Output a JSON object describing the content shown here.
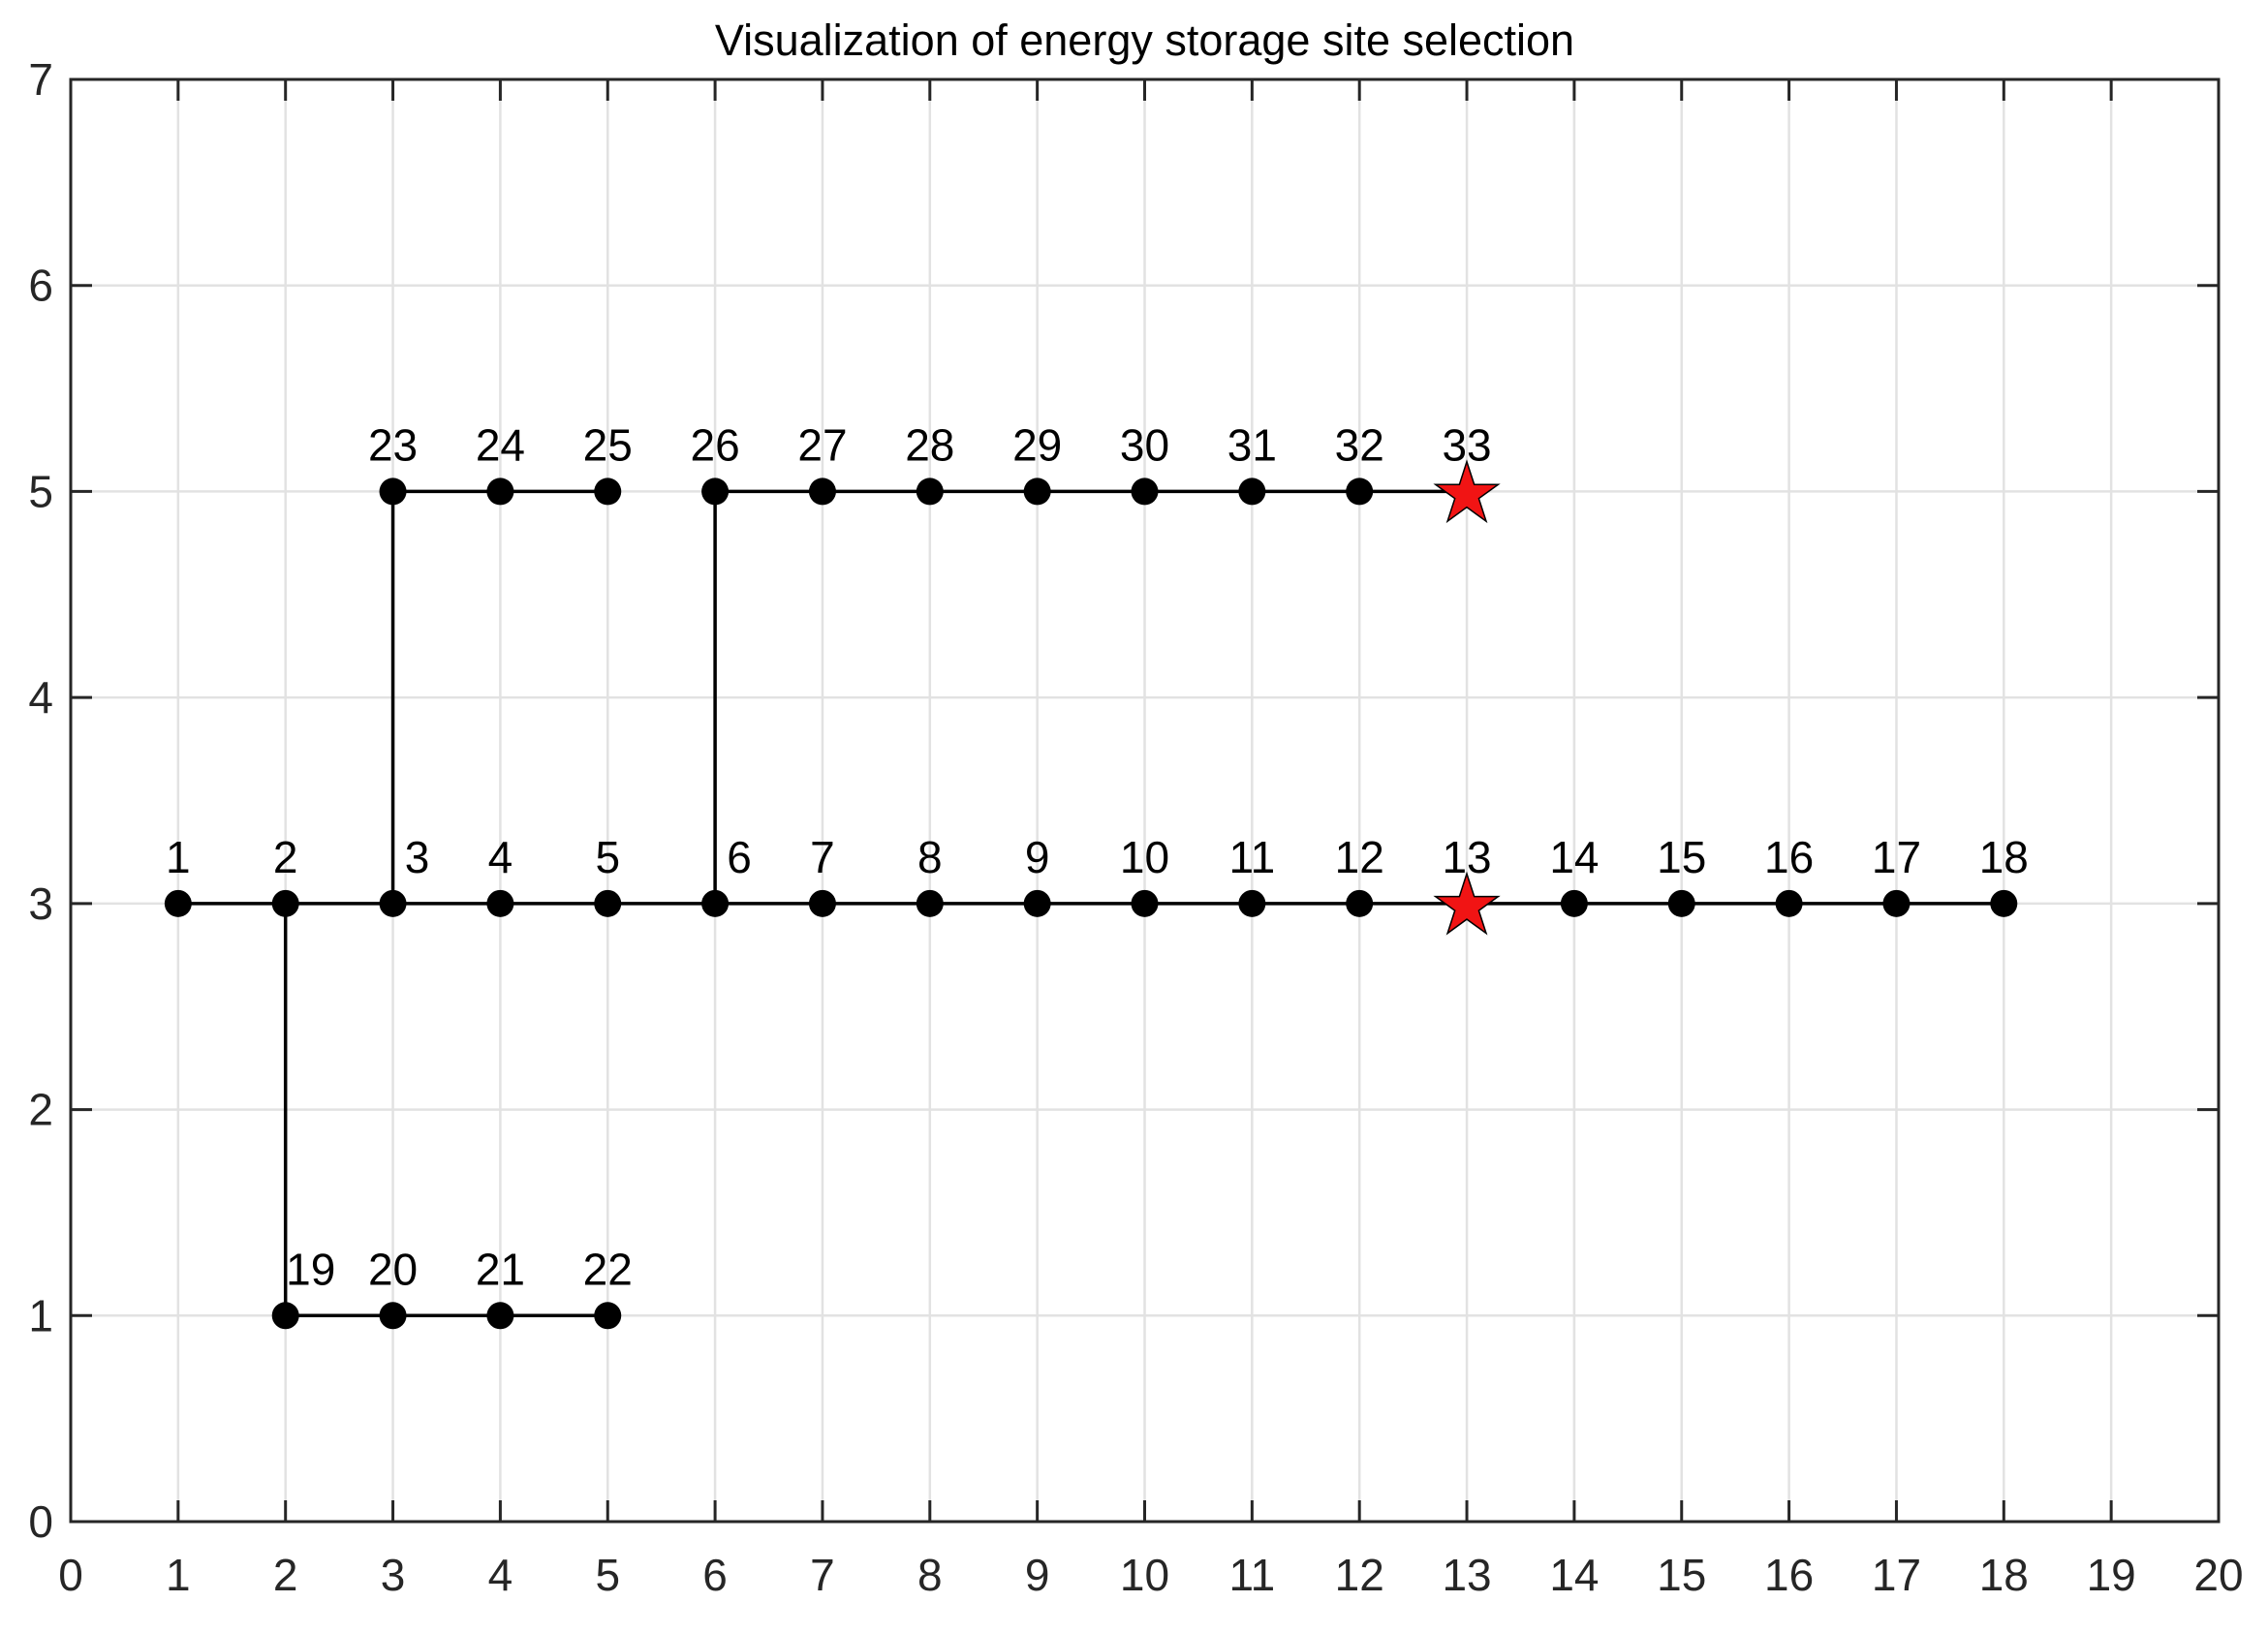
{
  "window": {
    "background": "#ffffff"
  },
  "chart_data": {
    "type": "scatter",
    "title": "Visualization of energy storage site selection",
    "xlabel": "",
    "ylabel": "",
    "xlim": [
      0,
      20
    ],
    "ylim": [
      0,
      7
    ],
    "xticks": [
      0,
      1,
      2,
      3,
      4,
      5,
      6,
      7,
      8,
      9,
      10,
      11,
      12,
      13,
      14,
      15,
      16,
      17,
      18,
      19,
      20
    ],
    "yticks": [
      0,
      1,
      2,
      3,
      4,
      5,
      6,
      7
    ],
    "grid": true,
    "legend": "none",
    "styles": {
      "node_color": "#000000",
      "edge_color": "#000000",
      "storage_color": "#f11414",
      "storage_edge_color": "#000000",
      "axis_color": "#262626",
      "grid_color": "#e2e2e2",
      "tick_label_color": "#262626",
      "node_label_color": "#000000"
    },
    "nodes": [
      {
        "id": 1,
        "x": 1,
        "y": 3
      },
      {
        "id": 2,
        "x": 2,
        "y": 3
      },
      {
        "id": 3,
        "x": 3,
        "y": 3
      },
      {
        "id": 4,
        "x": 4,
        "y": 3
      },
      {
        "id": 5,
        "x": 5,
        "y": 3
      },
      {
        "id": 6,
        "x": 6,
        "y": 3
      },
      {
        "id": 7,
        "x": 7,
        "y": 3
      },
      {
        "id": 8,
        "x": 8,
        "y": 3
      },
      {
        "id": 9,
        "x": 9,
        "y": 3
      },
      {
        "id": 10,
        "x": 10,
        "y": 3
      },
      {
        "id": 11,
        "x": 11,
        "y": 3
      },
      {
        "id": 12,
        "x": 12,
        "y": 3
      },
      {
        "id": 13,
        "x": 13,
        "y": 3
      },
      {
        "id": 14,
        "x": 14,
        "y": 3
      },
      {
        "id": 15,
        "x": 15,
        "y": 3
      },
      {
        "id": 16,
        "x": 16,
        "y": 3
      },
      {
        "id": 17,
        "x": 17,
        "y": 3
      },
      {
        "id": 18,
        "x": 18,
        "y": 3
      },
      {
        "id": 19,
        "x": 2,
        "y": 1
      },
      {
        "id": 20,
        "x": 3,
        "y": 1
      },
      {
        "id": 21,
        "x": 4,
        "y": 1
      },
      {
        "id": 22,
        "x": 5,
        "y": 1
      },
      {
        "id": 23,
        "x": 3,
        "y": 5
      },
      {
        "id": 24,
        "x": 4,
        "y": 5
      },
      {
        "id": 25,
        "x": 5,
        "y": 5
      },
      {
        "id": 26,
        "x": 6,
        "y": 5
      },
      {
        "id": 27,
        "x": 7,
        "y": 5
      },
      {
        "id": 28,
        "x": 8,
        "y": 5
      },
      {
        "id": 29,
        "x": 9,
        "y": 5
      },
      {
        "id": 30,
        "x": 10,
        "y": 5
      },
      {
        "id": 31,
        "x": 11,
        "y": 5
      },
      {
        "id": 32,
        "x": 12,
        "y": 5
      },
      {
        "id": 33,
        "x": 13,
        "y": 5
      }
    ],
    "storage_node_ids": [
      13,
      33
    ],
    "edges": [
      [
        1,
        2
      ],
      [
        2,
        3
      ],
      [
        3,
        4
      ],
      [
        4,
        5
      ],
      [
        5,
        6
      ],
      [
        6,
        7
      ],
      [
        7,
        8
      ],
      [
        8,
        9
      ],
      [
        9,
        10
      ],
      [
        10,
        11
      ],
      [
        11,
        12
      ],
      [
        12,
        13
      ],
      [
        13,
        14
      ],
      [
        14,
        15
      ],
      [
        15,
        16
      ],
      [
        16,
        17
      ],
      [
        17,
        18
      ],
      [
        2,
        19
      ],
      [
        19,
        20
      ],
      [
        20,
        21
      ],
      [
        21,
        22
      ],
      [
        3,
        23
      ],
      [
        23,
        24
      ],
      [
        24,
        25
      ],
      [
        6,
        26
      ],
      [
        26,
        27
      ],
      [
        27,
        28
      ],
      [
        28,
        29
      ],
      [
        29,
        30
      ],
      [
        30,
        31
      ],
      [
        31,
        32
      ],
      [
        32,
        33
      ]
    ],
    "node_label_dx": {
      "3": 25,
      "6": 25,
      "19": 26
    }
  }
}
